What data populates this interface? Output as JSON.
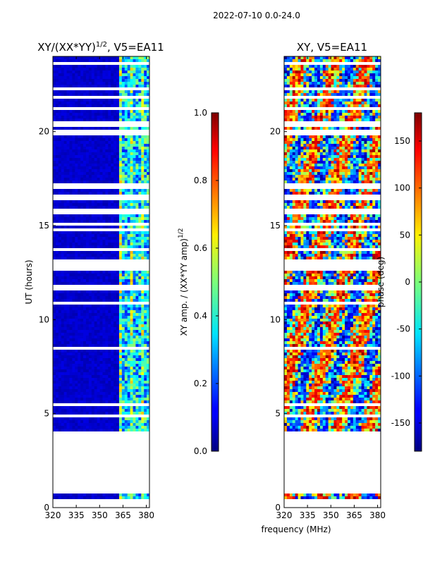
{
  "figure": {
    "suptitle": "2022-07-10 0.0-24.0",
    "xlabel": "frequency (MHz)"
  },
  "chart_data": [
    {
      "type": "heatmap",
      "title_prefix": "XY/(XX*YY)",
      "title_exp": "1/2",
      "title_suffix": ", V5=EA11",
      "ylabel": "UT (hours)",
      "xlim": [
        320,
        382
      ],
      "ylim": [
        0,
        24
      ],
      "xticks": [
        "320",
        "335",
        "350",
        "365",
        "380"
      ],
      "yticks": [
        "0",
        "5",
        "10",
        "15",
        "20"
      ],
      "xtick_values": [
        320,
        335,
        350,
        365,
        380
      ],
      "ytick_values": [
        0,
        5,
        10,
        15,
        20
      ],
      "colorbar": {
        "label_prefix": "XY amp. / (XX*YY amp)",
        "label_exp": "1/2",
        "range": [
          0.0,
          1.0
        ],
        "ticks": [
          "0.0",
          "0.2",
          "0.4",
          "0.6",
          "0.8",
          "1.0"
        ],
        "tick_values": [
          0.0,
          0.2,
          0.4,
          0.6,
          0.8,
          1.0
        ]
      },
      "data_blocks_hours": [
        [
          0.5,
          0.75
        ],
        [
          4.0,
          4.5
        ],
        [
          4.55,
          5.5
        ],
        [
          5.6,
          12.6
        ],
        [
          13.2,
          20.2
        ],
        [
          20.5,
          24.0
        ]
      ],
      "typical_values": {
        "below_362MHz": 0.05,
        "above_362MHz": 0.35
      }
    },
    {
      "type": "heatmap",
      "title": "XY, V5=EA11",
      "xlim": [
        320,
        382
      ],
      "ylim": [
        0,
        24
      ],
      "xticks": [
        "320",
        "335",
        "350",
        "365",
        "380"
      ],
      "yticks": [
        "0",
        "5",
        "10",
        "15",
        "20"
      ],
      "xtick_values": [
        320,
        335,
        350,
        365,
        380
      ],
      "ytick_values": [
        0,
        5,
        10,
        15,
        20
      ],
      "colorbar": {
        "label": "phase (deg)",
        "range": [
          -180,
          180
        ],
        "ticks": [
          "-150",
          "-100",
          "-50",
          "0",
          "50",
          "100",
          "150"
        ],
        "tick_values": [
          -150,
          -100,
          -50,
          0,
          50,
          100,
          150
        ]
      },
      "data_blocks_hours": [
        [
          0.5,
          0.75
        ],
        [
          4.0,
          4.5
        ],
        [
          4.55,
          5.5
        ],
        [
          5.6,
          12.6
        ],
        [
          13.2,
          20.2
        ],
        [
          20.5,
          24.0
        ]
      ],
      "typical_values": {
        "phase_span_deg": [
          -180,
          180
        ]
      }
    }
  ]
}
